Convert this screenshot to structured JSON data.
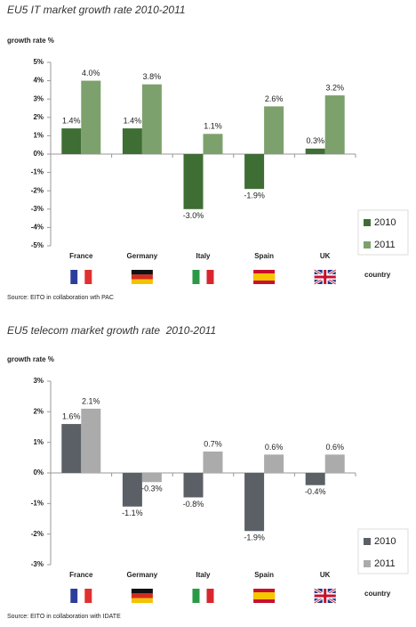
{
  "chart_data": [
    {
      "type": "bar",
      "title": "EU5 IT market growth rate 2010-2011",
      "y_label": "growth rate %",
      "x_label": "country",
      "source": "Source: EITO in collaboration wth PAC",
      "categories": [
        "France",
        "Germany",
        "Italy",
        "Spain",
        "UK"
      ],
      "series": [
        {
          "name": "2010",
          "color": "#3f6e35",
          "values": [
            1.4,
            1.4,
            -3.0,
            -1.9,
            0.3
          ],
          "value_labels": [
            "1.4%",
            "1.4%",
            "-3.0%",
            "-1.9%",
            "0.3%"
          ]
        },
        {
          "name": "2011",
          "color": "#7da16c",
          "values": [
            4.0,
            3.8,
            1.1,
            2.6,
            3.2
          ],
          "value_labels": [
            "4.0%",
            "3.8%",
            "1.1%",
            "2.6%",
            "3.2%"
          ]
        }
      ],
      "ylim": [
        -5,
        5
      ],
      "yticks": [
        {
          "value": 5,
          "label": "5%"
        },
        {
          "value": 4,
          "label": "4%"
        },
        {
          "value": 3,
          "label": "3%"
        },
        {
          "value": 2,
          "label": "2%"
        },
        {
          "value": 1,
          "label": "1%"
        },
        {
          "value": 0,
          "label": "0%"
        },
        {
          "value": -1,
          "label": "-1%"
        },
        {
          "value": -2,
          "label": "-2%"
        },
        {
          "value": -3,
          "label": "-3%"
        },
        {
          "value": -4,
          "label": "-4%"
        },
        {
          "value": -5,
          "label": "-5%"
        }
      ]
    },
    {
      "type": "bar",
      "title": "EU5 telecom market growth rate  2010-2011",
      "y_label": "growth rate %",
      "x_label": "country",
      "source": "Source: EITO in collaboration with IDATE",
      "categories": [
        "France",
        "Germany",
        "Italy",
        "Spain",
        "UK"
      ],
      "series": [
        {
          "name": "2010",
          "color": "#5b6067",
          "values": [
            1.6,
            -1.1,
            -0.8,
            -1.9,
            -0.4
          ],
          "value_labels": [
            "1.6%",
            "-1.1%",
            "-0.8%",
            "-1.9%",
            "-0.4%"
          ]
        },
        {
          "name": "2011",
          "color": "#ababab",
          "values": [
            2.1,
            -0.3,
            0.7,
            0.6,
            0.6
          ],
          "value_labels": [
            "2.1%",
            "-0.3%",
            "0.7%",
            "0.6%",
            "0.6%"
          ]
        }
      ],
      "ylim": [
        -3,
        3
      ],
      "yticks": [
        {
          "value": 3,
          "label": "3%"
        },
        {
          "value": 2,
          "label": "2%"
        },
        {
          "value": 1,
          "label": "1%"
        },
        {
          "value": 0,
          "label": "0%"
        },
        {
          "value": -1,
          "label": "-1%"
        },
        {
          "value": -2,
          "label": "-2%"
        },
        {
          "value": -3,
          "label": "-3%"
        }
      ]
    }
  ]
}
